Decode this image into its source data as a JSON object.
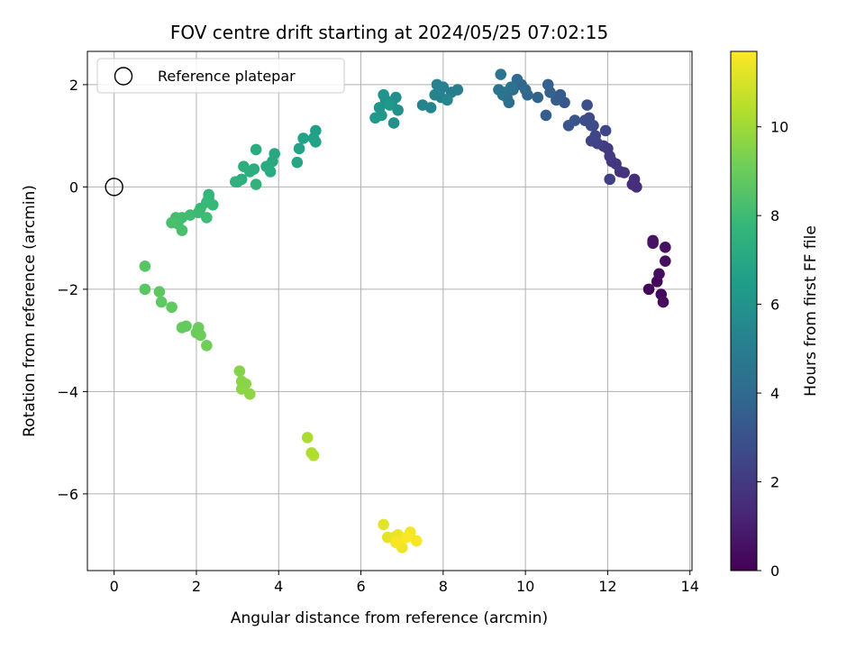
{
  "chart_data": {
    "type": "scatter",
    "title": "FOV centre drift starting at 2024/05/25 07:02:15",
    "xlabel": "Angular distance from reference (arcmin)",
    "ylabel": "Rotation from reference (arcmin)",
    "xlim": [
      -0.65,
      14.05
    ],
    "ylim": [
      -7.5,
      2.65
    ],
    "xticks": [
      0,
      2,
      4,
      6,
      8,
      10,
      12,
      14
    ],
    "yticks": [
      -6,
      -4,
      -2,
      0,
      2
    ],
    "grid": true,
    "legend": {
      "position": "top-left",
      "entries": [
        "Reference platepar"
      ]
    },
    "reference_point": {
      "x": 0,
      "y": 0,
      "label": "Reference platepar"
    },
    "colorbar": {
      "label": "Hours from first FF file",
      "colormap": "viridis",
      "min": 0,
      "max": 11.7,
      "ticks": [
        0,
        2,
        4,
        6,
        8,
        10
      ]
    },
    "colormap_stops": [
      "#440154",
      "#482878",
      "#3e4989",
      "#31688e",
      "#26828e",
      "#1f9e89",
      "#35b779",
      "#6ece58",
      "#b5de2b",
      "#fde725"
    ],
    "points": [
      {
        "x": 13.0,
        "y": -2.0,
        "c": 0.1
      },
      {
        "x": 13.2,
        "y": -1.85,
        "c": 0.2
      },
      {
        "x": 13.3,
        "y": -2.1,
        "c": 0.3
      },
      {
        "x": 13.35,
        "y": -2.25,
        "c": 0.35
      },
      {
        "x": 13.25,
        "y": -1.7,
        "c": 0.4
      },
      {
        "x": 13.4,
        "y": -1.45,
        "c": 0.45
      },
      {
        "x": 13.4,
        "y": -1.18,
        "c": 0.5
      },
      {
        "x": 13.1,
        "y": -1.05,
        "c": 0.55
      },
      {
        "x": 13.1,
        "y": -1.1,
        "c": 0.6
      },
      {
        "x": 12.7,
        "y": 0.0,
        "c": 1.5
      },
      {
        "x": 12.6,
        "y": 0.05,
        "c": 1.55
      },
      {
        "x": 12.65,
        "y": 0.15,
        "c": 1.6
      },
      {
        "x": 12.4,
        "y": 0.28,
        "c": 1.7
      },
      {
        "x": 12.3,
        "y": 0.3,
        "c": 1.75
      },
      {
        "x": 12.2,
        "y": 0.45,
        "c": 1.85
      },
      {
        "x": 12.1,
        "y": 0.5,
        "c": 1.9
      },
      {
        "x": 12.05,
        "y": 0.6,
        "c": 2.0
      },
      {
        "x": 12.0,
        "y": 0.75,
        "c": 2.05
      },
      {
        "x": 11.9,
        "y": 0.8,
        "c": 2.1
      },
      {
        "x": 12.05,
        "y": 0.15,
        "c": 2.2
      },
      {
        "x": 11.75,
        "y": 0.85,
        "c": 2.3
      },
      {
        "x": 11.6,
        "y": 0.9,
        "c": 2.4
      },
      {
        "x": 11.7,
        "y": 1.0,
        "c": 2.45
      },
      {
        "x": 11.95,
        "y": 1.1,
        "c": 2.5
      },
      {
        "x": 11.65,
        "y": 1.2,
        "c": 2.6
      },
      {
        "x": 11.55,
        "y": 1.35,
        "c": 2.7
      },
      {
        "x": 11.6,
        "y": 1.2,
        "c": 2.75
      },
      {
        "x": 11.45,
        "y": 1.3,
        "c": 2.8
      },
      {
        "x": 11.5,
        "y": 1.6,
        "c": 2.9
      },
      {
        "x": 11.2,
        "y": 1.3,
        "c": 3.0
      },
      {
        "x": 11.05,
        "y": 1.2,
        "c": 3.1
      },
      {
        "x": 10.95,
        "y": 1.65,
        "c": 3.2
      },
      {
        "x": 10.85,
        "y": 1.8,
        "c": 3.3
      },
      {
        "x": 10.75,
        "y": 1.7,
        "c": 3.4
      },
      {
        "x": 10.5,
        "y": 1.4,
        "c": 3.5
      },
      {
        "x": 10.6,
        "y": 1.85,
        "c": 3.6
      },
      {
        "x": 10.55,
        "y": 2.0,
        "c": 3.65
      },
      {
        "x": 10.3,
        "y": 1.75,
        "c": 3.7
      },
      {
        "x": 10.05,
        "y": 1.8,
        "c": 3.8
      },
      {
        "x": 9.9,
        "y": 2.0,
        "c": 3.9
      },
      {
        "x": 10.0,
        "y": 1.9,
        "c": 3.95
      },
      {
        "x": 9.8,
        "y": 2.1,
        "c": 4.0
      },
      {
        "x": 9.7,
        "y": 1.9,
        "c": 4.1
      },
      {
        "x": 9.55,
        "y": 1.75,
        "c": 4.2
      },
      {
        "x": 9.6,
        "y": 1.65,
        "c": 4.25
      },
      {
        "x": 9.45,
        "y": 1.8,
        "c": 4.3
      },
      {
        "x": 9.35,
        "y": 1.9,
        "c": 4.4
      },
      {
        "x": 9.5,
        "y": 1.85,
        "c": 4.45
      },
      {
        "x": 9.65,
        "y": 1.95,
        "c": 4.5
      },
      {
        "x": 9.4,
        "y": 2.2,
        "c": 4.55
      },
      {
        "x": 8.35,
        "y": 1.9,
        "c": 5.0
      },
      {
        "x": 8.2,
        "y": 1.85,
        "c": 5.05
      },
      {
        "x": 8.0,
        "y": 1.95,
        "c": 5.1
      },
      {
        "x": 7.95,
        "y": 1.75,
        "c": 5.15
      },
      {
        "x": 7.85,
        "y": 2.0,
        "c": 5.2
      },
      {
        "x": 7.8,
        "y": 1.8,
        "c": 5.25
      },
      {
        "x": 7.7,
        "y": 1.55,
        "c": 5.3
      },
      {
        "x": 7.5,
        "y": 1.6,
        "c": 5.35
      },
      {
        "x": 8.1,
        "y": 1.7,
        "c": 5.4
      },
      {
        "x": 6.85,
        "y": 1.75,
        "c": 5.8
      },
      {
        "x": 6.75,
        "y": 1.65,
        "c": 5.85
      },
      {
        "x": 6.8,
        "y": 1.25,
        "c": 5.9
      },
      {
        "x": 6.9,
        "y": 1.5,
        "c": 5.95
      },
      {
        "x": 6.6,
        "y": 1.7,
        "c": 6.0
      },
      {
        "x": 6.45,
        "y": 1.55,
        "c": 6.05
      },
      {
        "x": 6.55,
        "y": 1.8,
        "c": 6.1
      },
      {
        "x": 6.5,
        "y": 1.4,
        "c": 6.15
      },
      {
        "x": 6.35,
        "y": 1.35,
        "c": 6.2
      },
      {
        "x": 6.7,
        "y": 1.6,
        "c": 6.25
      },
      {
        "x": 4.9,
        "y": 1.1,
        "c": 6.6
      },
      {
        "x": 4.85,
        "y": 0.95,
        "c": 6.65
      },
      {
        "x": 4.9,
        "y": 0.88,
        "c": 6.7
      },
      {
        "x": 4.6,
        "y": 0.95,
        "c": 6.75
      },
      {
        "x": 4.5,
        "y": 0.75,
        "c": 6.8
      },
      {
        "x": 4.45,
        "y": 0.48,
        "c": 6.85
      },
      {
        "x": 3.9,
        "y": 0.65,
        "c": 7.0
      },
      {
        "x": 3.85,
        "y": 0.5,
        "c": 7.05
      },
      {
        "x": 3.7,
        "y": 0.4,
        "c": 7.1
      },
      {
        "x": 3.8,
        "y": 0.3,
        "c": 7.15
      },
      {
        "x": 3.45,
        "y": 0.73,
        "c": 7.2
      },
      {
        "x": 3.4,
        "y": 0.35,
        "c": 7.25
      },
      {
        "x": 3.3,
        "y": 0.3,
        "c": 7.3
      },
      {
        "x": 3.15,
        "y": 0.4,
        "c": 7.35
      },
      {
        "x": 3.1,
        "y": 0.15,
        "c": 7.4
      },
      {
        "x": 3.0,
        "y": 0.1,
        "c": 7.45
      },
      {
        "x": 2.95,
        "y": 0.1,
        "c": 7.5
      },
      {
        "x": 3.45,
        "y": 0.05,
        "c": 7.55
      },
      {
        "x": 2.3,
        "y": -0.15,
        "c": 7.7
      },
      {
        "x": 2.3,
        "y": -0.22,
        "c": 7.75
      },
      {
        "x": 2.4,
        "y": -0.35,
        "c": 7.8
      },
      {
        "x": 2.25,
        "y": -0.3,
        "c": 7.85
      },
      {
        "x": 2.1,
        "y": -0.42,
        "c": 7.9
      },
      {
        "x": 2.05,
        "y": -0.5,
        "c": 7.95
      },
      {
        "x": 2.25,
        "y": -0.6,
        "c": 8.0
      },
      {
        "x": 1.85,
        "y": -0.55,
        "c": 8.05
      },
      {
        "x": 1.65,
        "y": -0.6,
        "c": 8.1
      },
      {
        "x": 1.5,
        "y": -0.6,
        "c": 8.15
      },
      {
        "x": 1.55,
        "y": -0.72,
        "c": 8.2
      },
      {
        "x": 1.65,
        "y": -0.85,
        "c": 8.25
      },
      {
        "x": 1.4,
        "y": -0.7,
        "c": 8.3
      },
      {
        "x": 0.75,
        "y": -1.55,
        "c": 8.6
      },
      {
        "x": 0.75,
        "y": -2.0,
        "c": 8.65
      },
      {
        "x": 1.1,
        "y": -2.05,
        "c": 8.7
      },
      {
        "x": 1.15,
        "y": -2.25,
        "c": 8.75
      },
      {
        "x": 1.4,
        "y": -2.35,
        "c": 8.8
      },
      {
        "x": 1.65,
        "y": -2.75,
        "c": 8.85
      },
      {
        "x": 1.75,
        "y": -2.72,
        "c": 8.9
      },
      {
        "x": 2.0,
        "y": -2.85,
        "c": 8.95
      },
      {
        "x": 2.05,
        "y": -2.75,
        "c": 9.0
      },
      {
        "x": 2.1,
        "y": -2.9,
        "c": 9.05
      },
      {
        "x": 2.25,
        "y": -3.1,
        "c": 9.1
      },
      {
        "x": 3.05,
        "y": -3.6,
        "c": 9.5
      },
      {
        "x": 3.1,
        "y": -3.8,
        "c": 9.55
      },
      {
        "x": 3.2,
        "y": -3.85,
        "c": 9.6
      },
      {
        "x": 3.1,
        "y": -3.95,
        "c": 9.65
      },
      {
        "x": 3.3,
        "y": -4.05,
        "c": 9.7
      },
      {
        "x": 4.7,
        "y": -4.9,
        "c": 10.2
      },
      {
        "x": 4.8,
        "y": -5.2,
        "c": 10.25
      },
      {
        "x": 4.85,
        "y": -5.25,
        "c": 10.3
      },
      {
        "x": 6.55,
        "y": -6.6,
        "c": 11.2
      },
      {
        "x": 6.65,
        "y": -6.85,
        "c": 11.25
      },
      {
        "x": 6.8,
        "y": -6.85,
        "c": 11.3
      },
      {
        "x": 6.9,
        "y": -6.8,
        "c": 11.35
      },
      {
        "x": 6.95,
        "y": -6.92,
        "c": 11.4
      },
      {
        "x": 7.0,
        "y": -7.05,
        "c": 11.45
      },
      {
        "x": 7.2,
        "y": -6.75,
        "c": 11.5
      },
      {
        "x": 7.35,
        "y": -6.92,
        "c": 11.55
      },
      {
        "x": 6.85,
        "y": -6.95,
        "c": 11.6
      },
      {
        "x": 7.1,
        "y": -6.85,
        "c": 11.65
      }
    ]
  }
}
